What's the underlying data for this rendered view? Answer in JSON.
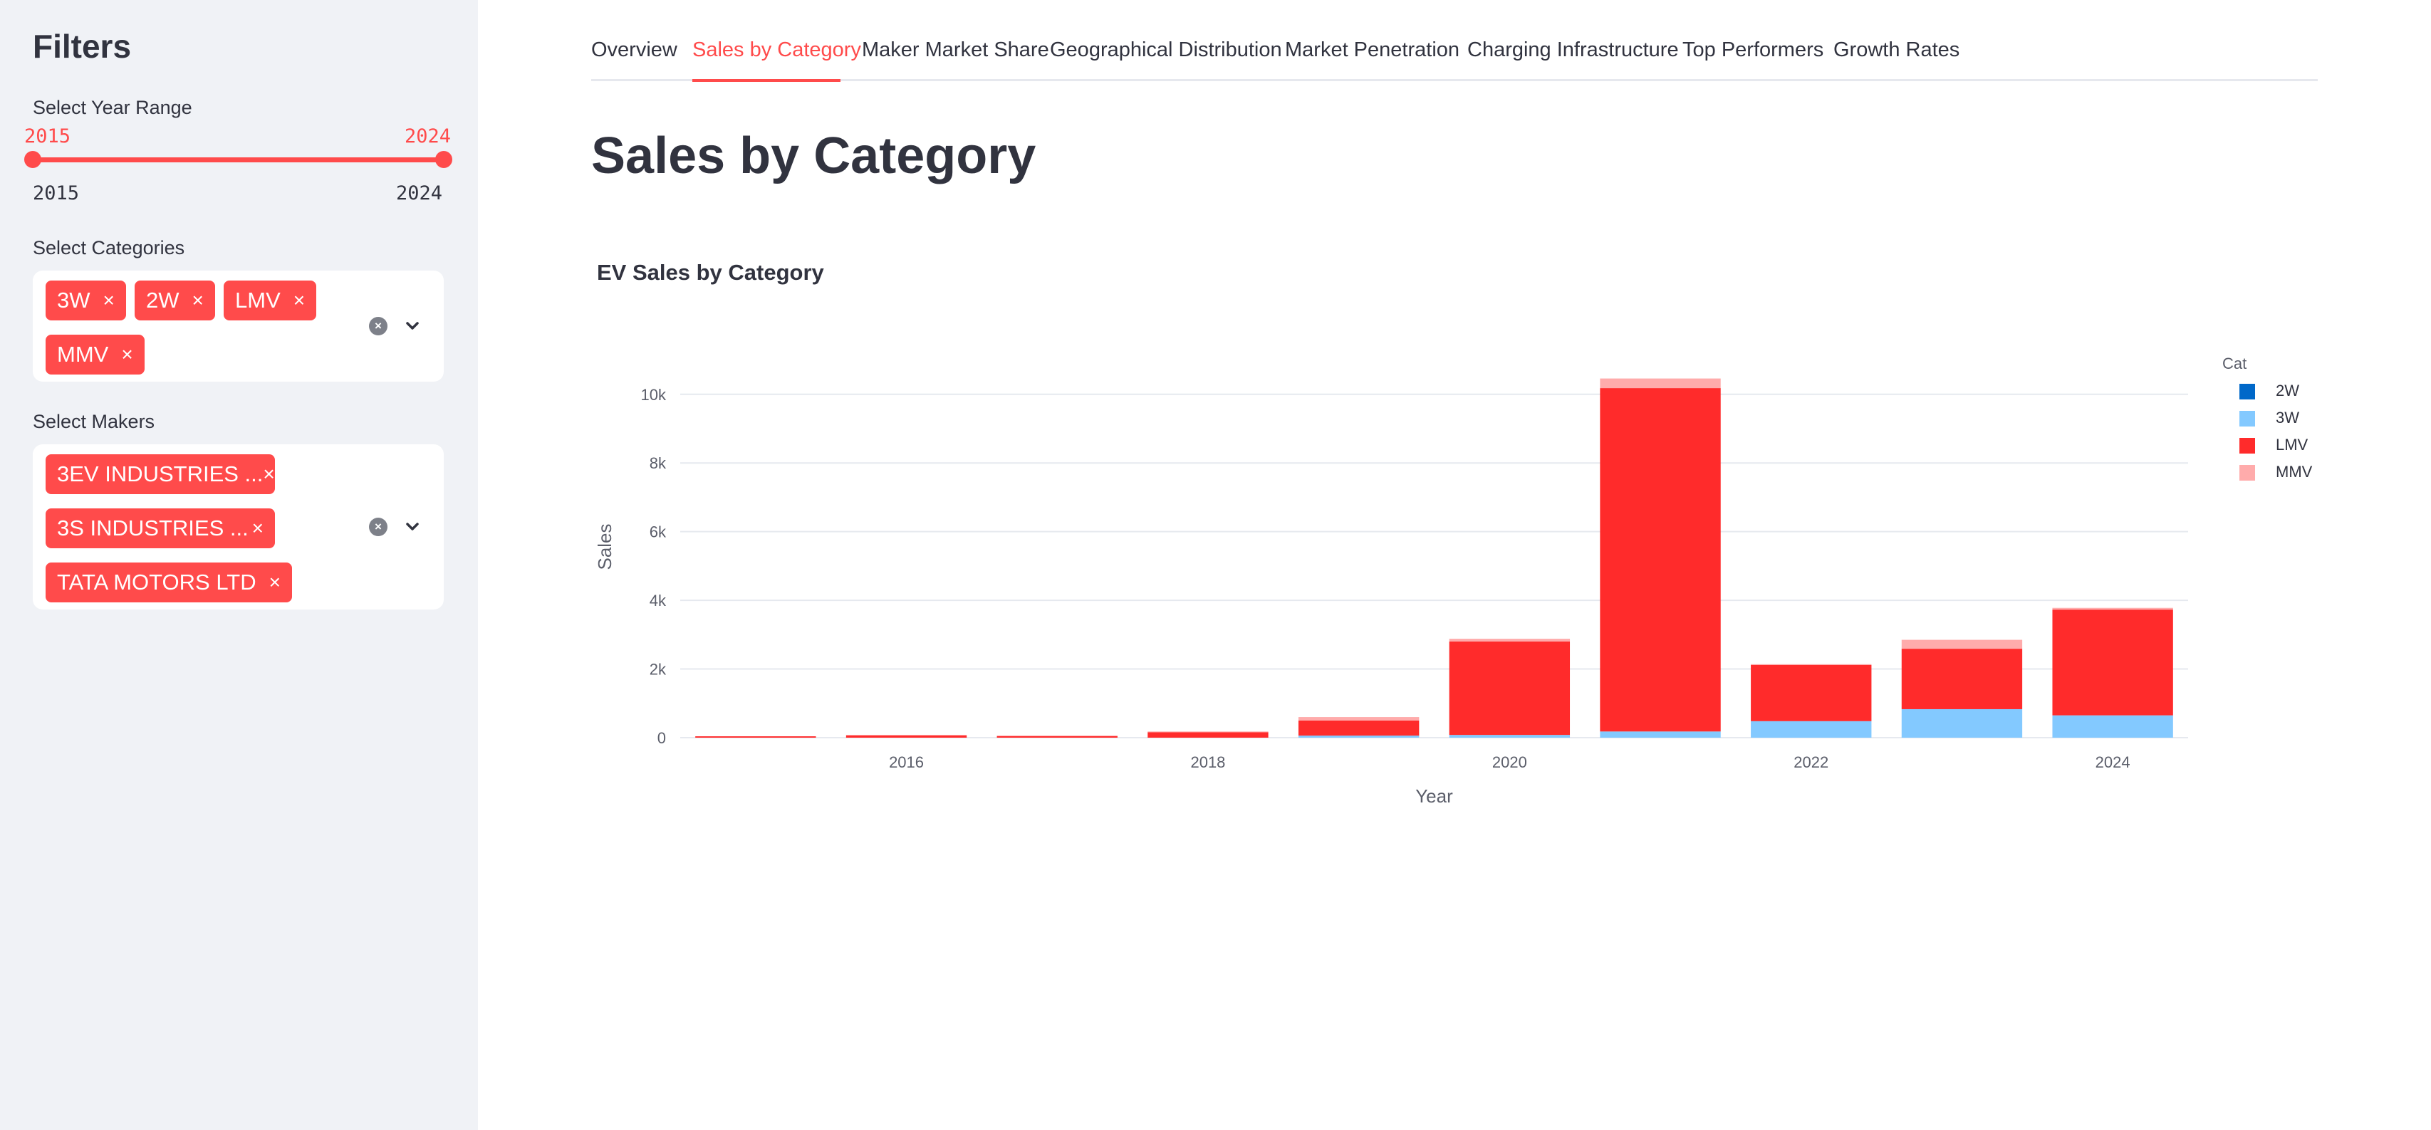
{
  "sidebar": {
    "title": "Filters",
    "year_range": {
      "label": "Select Year Range",
      "min": "2015",
      "max": "2024",
      "value_low": "2015",
      "value_high": "2024"
    },
    "categories": {
      "label": "Select Categories",
      "chips": [
        "3W",
        "2W",
        "LMV",
        "MMV"
      ]
    },
    "makers": {
      "label": "Select Makers",
      "chips": [
        "3EV INDUSTRIES ...",
        "3S INDUSTRIES ...",
        "TATA MOTORS LTD"
      ]
    },
    "chip_remove_glyph": "×",
    "clear_glyph": "×"
  },
  "tabs": [
    {
      "label": "Overview"
    },
    {
      "label": "Sales by Category"
    },
    {
      "label": "Maker Market Share"
    },
    {
      "label": "Geographical Distribution"
    },
    {
      "label": "Market Penetration"
    },
    {
      "label": "Charging Infrastructure"
    },
    {
      "label": "Top Performers"
    },
    {
      "label": "Growth Rates"
    }
  ],
  "active_tab": "Sales by Category",
  "main": {
    "page_title": "Sales by Category",
    "chart_title": "EV Sales by Category"
  },
  "colors": {
    "accent": "#ff4b4b",
    "series_2w": "#0068c9",
    "series_3w": "#83c9ff",
    "series_lmv": "#ff2b2b",
    "series_mmv": "#ffabab",
    "sidebar_bg": "#f0f2f6"
  },
  "chart_data": {
    "type": "bar",
    "stacked": true,
    "title": "EV Sales by Category",
    "xlabel": "Year",
    "ylabel": "Sales",
    "categories": [
      2015,
      2016,
      2017,
      2018,
      2019,
      2020,
      2021,
      2022,
      2023,
      2024
    ],
    "x_ticks": [
      "2016",
      "2018",
      "2020",
      "2022",
      "2024"
    ],
    "y_ticks": [
      "0",
      "2k",
      "4k",
      "6k",
      "8k",
      "10k"
    ],
    "ylim": [
      0,
      10700
    ],
    "legend_title": "Cat",
    "legend_position": "top-right",
    "grid": true,
    "series": [
      {
        "name": "2W",
        "color": "#0068c9",
        "values": [
          0,
          0,
          0,
          0,
          0,
          0,
          0,
          0,
          0,
          0
        ]
      },
      {
        "name": "3W",
        "color": "#83c9ff",
        "values": [
          0,
          0,
          0,
          0,
          60,
          80,
          180,
          480,
          830,
          650
        ]
      },
      {
        "name": "LMV",
        "color": "#ff2b2b",
        "values": [
          40,
          70,
          50,
          160,
          440,
          2720,
          10000,
          1640,
          1760,
          3080
        ]
      },
      {
        "name": "MMV",
        "color": "#ffabab",
        "values": [
          0,
          0,
          0,
          20,
          100,
          80,
          280,
          20,
          260,
          50
        ]
      }
    ]
  }
}
